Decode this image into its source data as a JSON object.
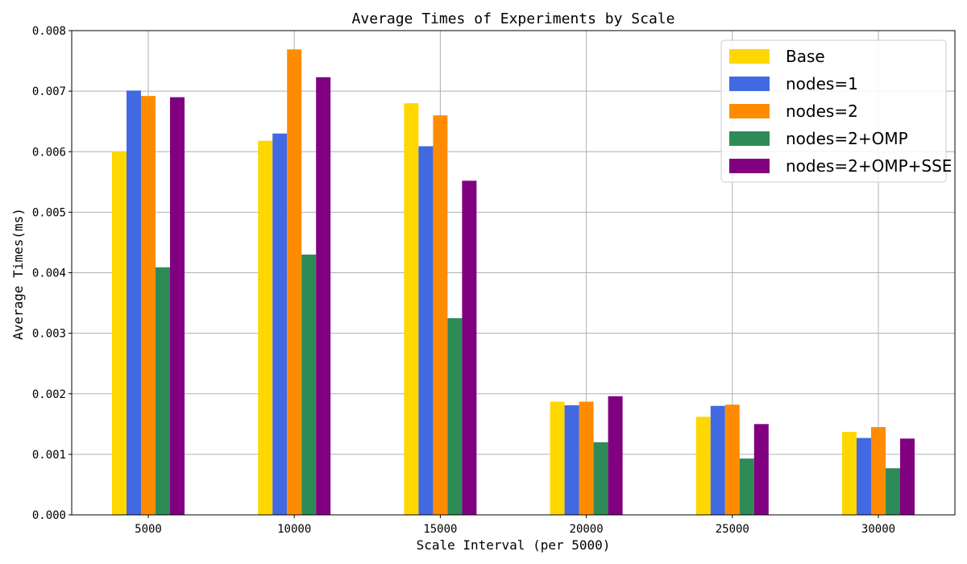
{
  "chart_data": {
    "type": "bar",
    "title": "Average Times of Experiments by Scale",
    "xlabel": "Scale Interval (per 5000)",
    "ylabel": "Average Times(ms)",
    "categories": [
      "5000",
      "10000",
      "15000",
      "20000",
      "25000",
      "30000"
    ],
    "ylim": [
      0,
      0.008
    ],
    "yticks": [
      "0.000",
      "0.001",
      "0.002",
      "0.003",
      "0.004",
      "0.005",
      "0.006",
      "0.007",
      "0.008"
    ],
    "grid": true,
    "legend_position": "top-right",
    "series": [
      {
        "name": "Base",
        "color": "#FFD700",
        "values": [
          0.006,
          0.00618,
          0.0068,
          0.00187,
          0.00162,
          0.00137
        ]
      },
      {
        "name": "nodes=1",
        "color": "#4169E1",
        "values": [
          0.00701,
          0.0063,
          0.00609,
          0.00181,
          0.0018,
          0.00127
        ]
      },
      {
        "name": "nodes=2",
        "color": "#FF8C00",
        "values": [
          0.00692,
          0.00769,
          0.0066,
          0.00187,
          0.00182,
          0.00145
        ]
      },
      {
        "name": "nodes=2+OMP",
        "color": "#2E8B57",
        "values": [
          0.00409,
          0.0043,
          0.00325,
          0.0012,
          0.00093,
          0.00077
        ]
      },
      {
        "name": "nodes=2+OMP+SSE",
        "color": "#800080",
        "values": [
          0.0069,
          0.00723,
          0.00552,
          0.00196,
          0.0015,
          0.00126
        ]
      }
    ]
  }
}
